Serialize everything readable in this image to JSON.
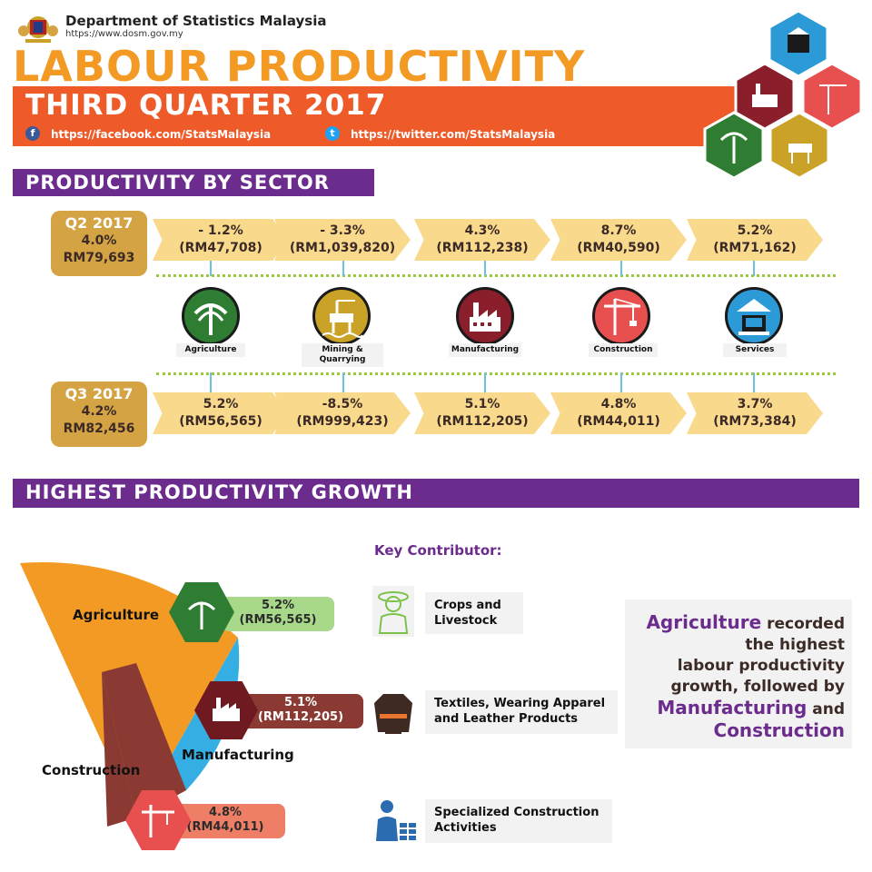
{
  "header": {
    "org_name": "Department of Statistics Malaysia",
    "org_url": "https://www.dosm.gov.my",
    "title": "LABOUR PRODUCTIVITY",
    "subtitle": "THIRD QUARTER 2017",
    "facebook": "https://facebook.com/StatsMalaysia",
    "twitter": "https://twitter.com/StatsMalaysia"
  },
  "sector_section": {
    "heading": "PRODUCTIVITY BY SECTOR",
    "q2": {
      "label": "Q2 2017",
      "growth": "4.0%",
      "value": "RM79,693"
    },
    "q3": {
      "label": "Q3 2017",
      "growth": "4.2%",
      "value": "RM82,456"
    },
    "sectors": [
      {
        "name": "Agriculture",
        "q2_growth": "- 1.2%",
        "q2_value": "(RM47,708)",
        "q3_growth": "5.2%",
        "q3_value": "(RM56,565)",
        "color": "#2e7d32",
        "icon": "palm-tree-icon"
      },
      {
        "name_l1": "Mining &",
        "name_l2": "Quarrying",
        "q2_growth": "- 3.3%",
        "q2_value": "(RM1,039,820)",
        "q3_growth": "-8.5%",
        "q3_value": "(RM999,423)",
        "color": "#c9a227",
        "icon": "oil-rig-icon"
      },
      {
        "name": "Manufacturing",
        "q2_growth": "4.3%",
        "q2_value": "(RM112,238)",
        "q3_growth": "5.1%",
        "q3_value": "(RM112,205)",
        "color": "#8b1e2b",
        "icon": "factory-icon"
      },
      {
        "name": "Construction",
        "q2_growth": "8.7%",
        "q2_value": "(RM40,590)",
        "q3_growth": "4.8%",
        "q3_value": "(RM44,011)",
        "color": "#e84f4f",
        "icon": "crane-icon"
      },
      {
        "name": "Services",
        "q2_growth": "5.2%",
        "q2_value": "(RM71,162)",
        "q3_growth": "3.7%",
        "q3_value": "(RM73,384)",
        "color": "#2b9ad6",
        "icon": "bank-icon"
      }
    ]
  },
  "growth_section": {
    "heading": "HIGHEST PRODUCTIVITY GROWTH",
    "key_title": "Key Contributor:",
    "agriculture": {
      "label": "Agriculture",
      "growth": "5.2%",
      "value": "(RM56,565)",
      "contributor_l1": "Crops and",
      "contributor_l2": "Livestock"
    },
    "manufacturing": {
      "label": "Manufacturing",
      "growth": "5.1%",
      "value": "(RM112,205)",
      "contributor_l1": "Textiles, Wearing Apparel",
      "contributor_l2": "and Leather Products"
    },
    "construction": {
      "label": "Construction",
      "growth": "4.8%",
      "value": "(RM44,011)",
      "contributor_l1": "Specialized Construction",
      "contributor_l2": "Activities"
    },
    "summary": {
      "w1": "Agriculture",
      "t1": " recorded",
      "t2": "the highest",
      "t3": "labour productivity",
      "t4": "growth, followed by",
      "w2": "Manufacturing",
      "t5": " and",
      "w3": "Construction"
    }
  },
  "colors": {
    "purple": "#6b2c8e",
    "orange": "#ef5a29",
    "title_orange": "#f29a23",
    "gold": "#d4a343",
    "arrow": "#f9d98c"
  }
}
